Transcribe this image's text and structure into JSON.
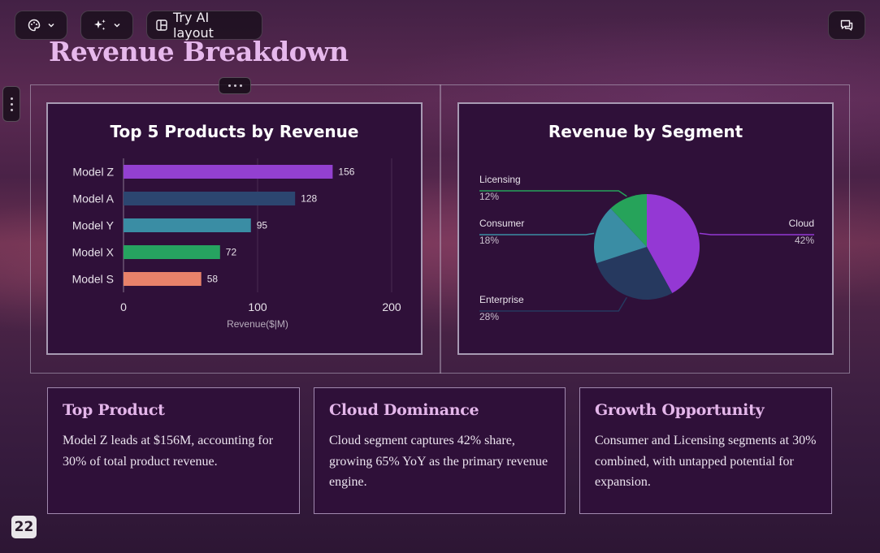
{
  "toolbar": {
    "theme_icon": "palette-icon",
    "ai_icon": "sparkle-icon",
    "layout_icon": "layout-icon",
    "layout_label": "Try AI layout",
    "comment_icon": "comment-icon"
  },
  "page": {
    "title": "Revenue Breakdown",
    "number": "22"
  },
  "chart_data": [
    {
      "type": "bar",
      "title": "Top 5 Products by Revenue",
      "orientation": "horizontal",
      "categories": [
        "Model Z",
        "Model A",
        "Model Y",
        "Model X",
        "Model S"
      ],
      "values": [
        156,
        128,
        95,
        72,
        58
      ],
      "colors": [
        "#9340d0",
        "#2c4670",
        "#3a8da4",
        "#26a360",
        "#e8826a"
      ],
      "xlabel": "Revenue($|M)",
      "ylabel": "",
      "xlim": [
        0,
        200
      ],
      "xticks": [
        0,
        100,
        200
      ],
      "grid": true
    },
    {
      "type": "pie",
      "title": "Revenue by Segment",
      "slices": [
        {
          "label": "Cloud",
          "value": 42,
          "value_label": "42%",
          "color": "#9438d4"
        },
        {
          "label": "Enterprise",
          "value": 28,
          "value_label": "28%",
          "color": "#26395f"
        },
        {
          "label": "Consumer",
          "value": 18,
          "value_label": "18%",
          "color": "#3a8da4"
        },
        {
          "label": "Licensing",
          "value": 12,
          "value_label": "12%",
          "color": "#26a35a"
        }
      ]
    }
  ],
  "insights": [
    {
      "title": "Top Product",
      "body": "Model Z leads at $156M, accounting for 30% of total product revenue."
    },
    {
      "title": "Cloud Dominance",
      "body": "Cloud segment captures 42% share, growing 65% YoY as the primary revenue engine."
    },
    {
      "title": "Growth Opportunity",
      "body": "Consumer and Licensing segments at 30% combined, with untapped potential for expansion."
    }
  ]
}
